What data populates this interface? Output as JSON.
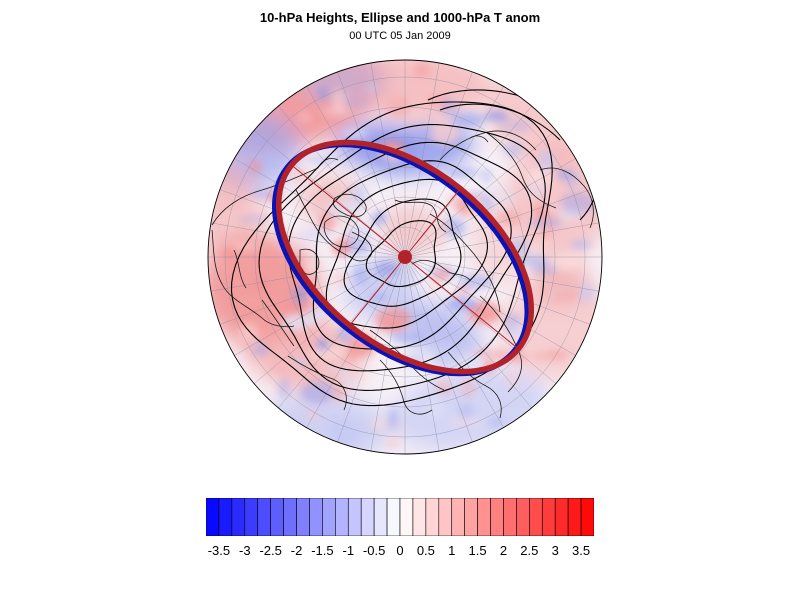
{
  "title": "10-hPa Heights, Ellipse and 1000-hPa T anom",
  "subtitle": "00 UTC 05 Jan 2009",
  "colorbar": {
    "labels": [
      "-3.5",
      "-3",
      "-2.5",
      "-2",
      "-1.5",
      "-1",
      "-0.5",
      "0",
      "0.5",
      "1",
      "1.5",
      "2",
      "2.5",
      "3",
      "3.5"
    ],
    "levels": [
      -3.75,
      -3.5,
      -3.25,
      -3,
      -2.75,
      -2.5,
      -2.25,
      -2,
      -1.75,
      -1.5,
      -1.25,
      -1,
      -0.75,
      -0.5,
      -0.25,
      0,
      0.25,
      0.5,
      0.75,
      1,
      1.25,
      1.5,
      1.75,
      2,
      2.25,
      2.5,
      2.75,
      3,
      3.25,
      3.5,
      3.75
    ],
    "negative_color": "#0000ff",
    "positive_color": "#ff0000",
    "neutral_color": "#ffffff"
  },
  "colors": {
    "ellipse_red": "#b2222a",
    "ellipse_blue": "#0a14b4",
    "center_dot": "#b2222a",
    "contour": "#000000",
    "coastline": "#1a1a1a",
    "graticule": "#8a8aa0"
  }
}
